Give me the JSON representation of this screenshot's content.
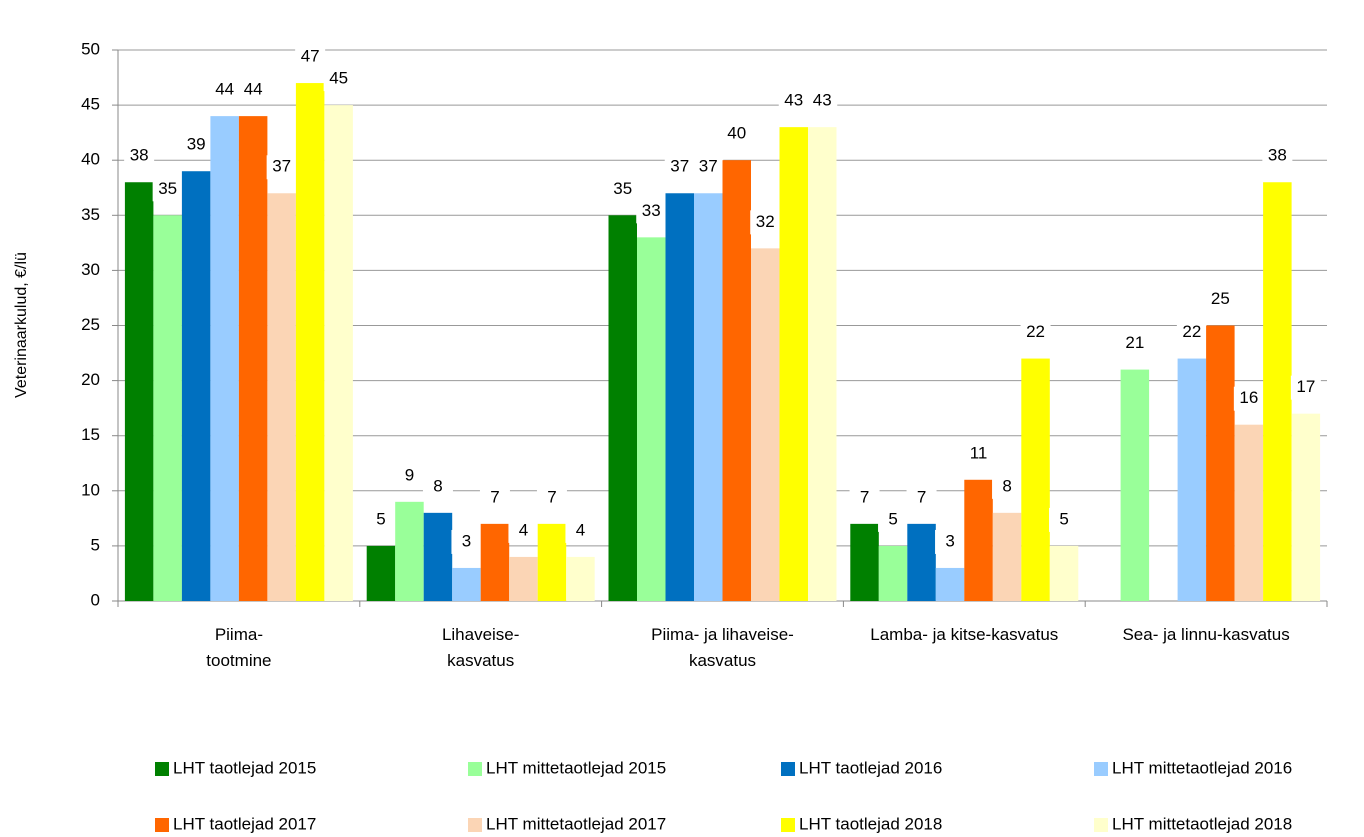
{
  "chart_data": {
    "type": "bar",
    "y_label": "Veterinaarkulud, €/lü",
    "categories": [
      "Piima-\ntootmine",
      "Lihaveise-\nkasvatus",
      "Piima- ja lihaveise-\nkasvatus",
      "Lamba- ja kitse-kasvatus",
      "Sea- ja linnu-kasvatus"
    ],
    "series": [
      {
        "name": "LHT taotlejad 2015",
        "color": "#008000",
        "values": [
          38,
          5,
          35,
          7,
          null
        ]
      },
      {
        "name": "LHT mittetaotlejad 2015",
        "color": "#99ff99",
        "values": [
          35,
          9,
          33,
          5,
          21
        ]
      },
      {
        "name": "LHT taotlejad 2016",
        "color": "#0070c0",
        "values": [
          39,
          8,
          37,
          7,
          null
        ]
      },
      {
        "name": "LHT mittetaotlejad 2016",
        "color": "#99ccff",
        "values": [
          44,
          3,
          37,
          3,
          22
        ]
      },
      {
        "name": "LHT taotlejad 2017",
        "color": "#ff6600",
        "values": [
          44,
          7,
          40,
          11,
          25
        ]
      },
      {
        "name": "LHT mittetaotlejad 2017",
        "color": "#fbd5b5",
        "values": [
          37,
          4,
          32,
          8,
          16
        ]
      },
      {
        "name": "LHT taotlejad 2018",
        "color": "#ffff00",
        "values": [
          47,
          7,
          43,
          22,
          38
        ]
      },
      {
        "name": "LHT mittetaotlejad 2018",
        "color": "#ffffcc",
        "values": [
          45,
          4,
          43,
          5,
          17
        ]
      }
    ],
    "ylim": [
      0,
      50
    ],
    "yticks": [
      0,
      5,
      10,
      15,
      20,
      25,
      30,
      35,
      40,
      45,
      50
    ],
    "grid": true
  }
}
